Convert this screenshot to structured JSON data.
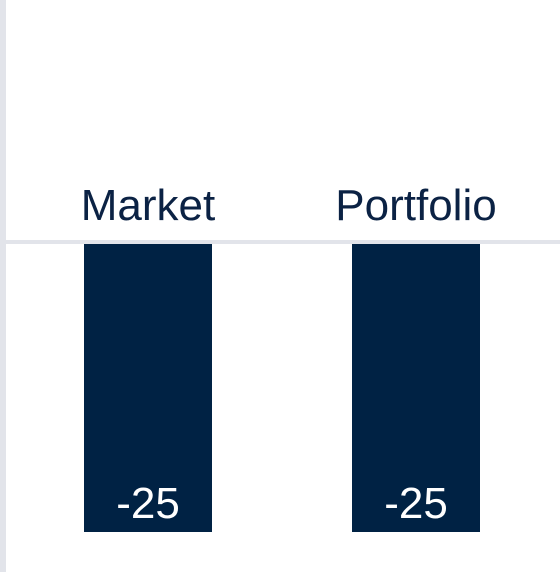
{
  "chart_data": {
    "type": "bar",
    "categories": [
      "Market",
      "Portfolio"
    ],
    "values": [
      -25,
      -25
    ],
    "data_labels": [
      "-25",
      "-25"
    ],
    "ylim": [
      -25,
      0
    ],
    "grid": false,
    "legend": "none",
    "colors": {
      "bar": "#002244",
      "baseline": "#e2e4ea",
      "left_axis": "#e2e4ea",
      "category_label": "#0b2244",
      "value_label": "#ffffff"
    }
  }
}
